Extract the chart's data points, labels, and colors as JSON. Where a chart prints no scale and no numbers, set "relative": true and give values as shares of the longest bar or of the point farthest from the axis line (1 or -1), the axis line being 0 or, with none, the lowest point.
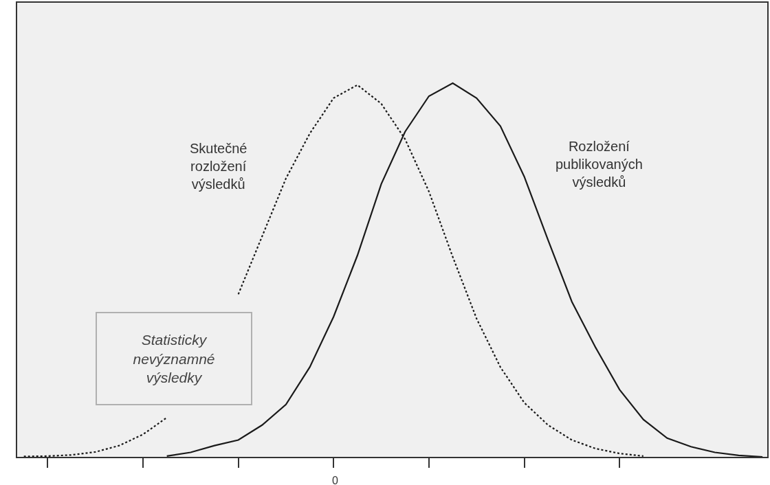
{
  "chart_data": {
    "type": "line",
    "relative": true,
    "categories": [
      null,
      null,
      null,
      null,
      null,
      null,
      null,
      null,
      null,
      null,
      null,
      null,
      null,
      null,
      null,
      null,
      null,
      null,
      null,
      null,
      null,
      null,
      null,
      null,
      null,
      null,
      null,
      null,
      null,
      null,
      null,
      null
    ],
    "grid": false,
    "legend": false,
    "marker": "none",
    "series": [
      {
        "name": "Skutečné rozložení výsledků",
        "color": "#1a1a1a",
        "line_style": "dotted",
        "values": [
          0.001,
          0.002,
          0.005,
          0.013,
          0.03,
          0.06,
          0.105,
          null,
          null,
          0.435,
          0.59,
          0.745,
          0.865,
          0.96,
          0.995,
          0.945,
          0.85,
          0.71,
          0.535,
          0.37,
          0.24,
          0.145,
          0.085,
          0.045,
          0.022,
          0.009,
          0.002,
          null,
          null,
          null,
          null,
          null
        ]
      },
      {
        "name": "Rozložení publikovaných výsledků",
        "color": "#1a1a1a",
        "line_style": "solid",
        "values": [
          null,
          null,
          null,
          null,
          null,
          null,
          0.002,
          0.012,
          0.03,
          0.045,
          0.085,
          0.14,
          0.24,
          0.375,
          0.539,
          0.73,
          0.87,
          0.965,
          1.0,
          0.96,
          0.885,
          0.75,
          0.58,
          0.415,
          0.292,
          0.18,
          0.1,
          0.05,
          0.027,
          0.012,
          0.004,
          0
        ]
      }
    ],
    "annotations": [
      "0",
      "Statisticky nevýznamné výsledky"
    ]
  }
}
